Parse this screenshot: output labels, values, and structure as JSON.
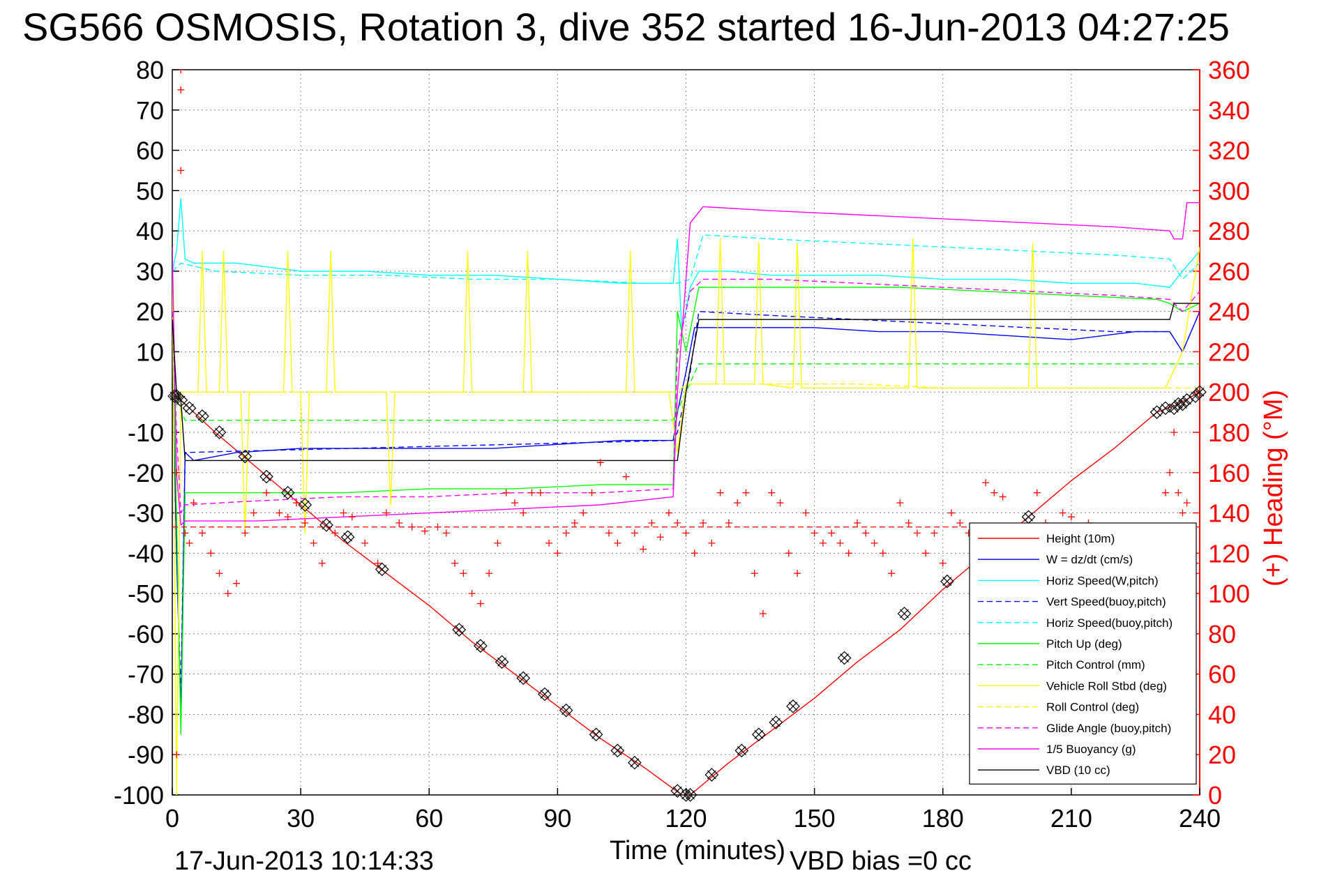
{
  "chart_data": {
    "type": "line",
    "title": "SG566 OSMOSIS, Rotation 3, dive 352 started 16-Jun-2013 04:27:25",
    "xlabel": "Time (minutes)",
    "ylabel_right": "(+) Heading (°M)",
    "footer_left": "17-Jun-2013 10:14:33",
    "footer_right": "VBD bias =0 cc",
    "xlim": [
      0,
      240
    ],
    "ylim": [
      -100,
      80
    ],
    "ylim_right": [
      0,
      360
    ],
    "xticks": [
      0,
      30,
      60,
      90,
      120,
      150,
      180,
      210,
      240
    ],
    "yticks": [
      -100,
      -90,
      -80,
      -70,
      -60,
      -50,
      -40,
      -30,
      -20,
      -10,
      0,
      10,
      20,
      30,
      40,
      50,
      60,
      70,
      80
    ],
    "yticks_right": [
      0,
      20,
      40,
      60,
      80,
      100,
      120,
      140,
      160,
      180,
      200,
      220,
      240,
      260,
      280,
      300,
      320,
      340,
      360
    ],
    "grid": true,
    "legend_position": "bottom-right",
    "series": [
      {
        "name": "Height (10m)",
        "color": "#ff0000",
        "style": "solid",
        "x": [
          0,
          2,
          10,
          20,
          30,
          40,
          50,
          60,
          70,
          80,
          90,
          100,
          110,
          119,
          121,
          130,
          140,
          150,
          160,
          170,
          180,
          190,
          200,
          210,
          220,
          230,
          235,
          240
        ],
        "y": [
          -1,
          -2,
          -10,
          -19,
          -28,
          -37,
          -45,
          -53,
          -62,
          -70,
          -78,
          -86,
          -93,
          -100,
          -100,
          -92,
          -84,
          -76,
          -67,
          -59,
          -49,
          -40,
          -31,
          -22,
          -14,
          -5,
          -3,
          0
        ]
      },
      {
        "name": "W = dz/dt (cm/s)",
        "color": "#0000ff",
        "style": "solid",
        "x": [
          0,
          1,
          2,
          3,
          5,
          15,
          30,
          45,
          60,
          75,
          90,
          105,
          117,
          118,
          120,
          122,
          130,
          140,
          150,
          165,
          180,
          195,
          210,
          225,
          233,
          236,
          240
        ],
        "y": [
          10,
          -40,
          -80,
          -15,
          -17,
          -15,
          -14,
          -14,
          -14,
          -14,
          -13,
          -12,
          -12,
          -5,
          5,
          16,
          16,
          16,
          16,
          15,
          15,
          14,
          13,
          15,
          15,
          10,
          20
        ]
      },
      {
        "name": "Horiz Speed(W,pitch)",
        "color": "#00ffff",
        "style": "solid",
        "x": [
          0,
          1,
          2,
          3,
          5,
          15,
          30,
          45,
          60,
          75,
          90,
          105,
          117,
          118,
          119,
          121,
          123,
          130,
          140,
          150,
          165,
          180,
          195,
          210,
          225,
          233,
          236,
          240
        ],
        "y": [
          30,
          35,
          48,
          33,
          32,
          32,
          30,
          30,
          29,
          29,
          28,
          27,
          27,
          38,
          15,
          26,
          30,
          30,
          29,
          29,
          29,
          28,
          28,
          27,
          27,
          26,
          30,
          35
        ]
      },
      {
        "name": "Vert Speed(buoy,pitch)",
        "color": "#0000ff",
        "style": "dashed",
        "x": [
          0,
          1,
          2,
          3,
          117,
          118,
          121,
          123,
          140,
          160,
          180,
          200,
          220,
          233,
          236,
          240
        ],
        "y": [
          10,
          -40,
          -75,
          -15,
          -12,
          -10,
          5,
          20,
          19,
          18,
          17,
          16,
          15,
          15,
          10,
          20
        ]
      },
      {
        "name": "Horiz Speed(buoy,pitch)",
        "color": "#00ffff",
        "style": "dashed",
        "x": [
          0,
          2,
          10,
          30,
          50,
          70,
          90,
          110,
          118,
          121,
          124,
          140,
          160,
          180,
          200,
          220,
          233,
          236,
          240
        ],
        "y": [
          30,
          32,
          30,
          29,
          29,
          28,
          28,
          27,
          27,
          28,
          39,
          38,
          37,
          36,
          35,
          34,
          33,
          28,
          32
        ]
      },
      {
        "name": "Pitch Up (deg)",
        "color": "#00ff00",
        "style": "solid",
        "x": [
          0,
          1,
          2,
          3,
          20,
          40,
          60,
          80,
          100,
          117,
          118,
          120,
          123,
          130,
          150,
          170,
          190,
          210,
          230,
          233,
          236,
          240
        ],
        "y": [
          20,
          -30,
          -85,
          -25,
          -25,
          -25,
          -24,
          -24,
          -23,
          -23,
          20,
          10,
          26,
          26,
          26,
          26,
          25,
          24,
          23,
          22,
          20,
          22
        ]
      },
      {
        "name": "Pitch Control (mm)",
        "color": "#00ff00",
        "style": "dashed",
        "x": [
          0,
          1,
          3,
          117,
          120,
          123,
          240
        ],
        "y": [
          0,
          -2,
          -7,
          -7,
          0,
          7,
          7
        ]
      },
      {
        "name": "Vehicle Roll Stbd (deg)",
        "color": "#ffff00",
        "style": "solid",
        "x": [
          0,
          1,
          2,
          6,
          7,
          8,
          11,
          12,
          13,
          16,
          17,
          18,
          20,
          26,
          27,
          28,
          30,
          31,
          32,
          36,
          37,
          38,
          45,
          50,
          51,
          52,
          60,
          68,
          69,
          70,
          76,
          82,
          83,
          84,
          90,
          100,
          106,
          107,
          108,
          116,
          118,
          120,
          127,
          128,
          129,
          136,
          137,
          138,
          145,
          146,
          147,
          160,
          170,
          172,
          173,
          174,
          190,
          200,
          201,
          202,
          220,
          232,
          236,
          240
        ],
        "y": [
          35,
          -100,
          0,
          0,
          35,
          0,
          0,
          35,
          0,
          0,
          -35,
          0,
          0,
          0,
          35,
          0,
          0,
          -35,
          0,
          0,
          35,
          0,
          0,
          0,
          -28,
          0,
          0,
          0,
          35,
          0,
          0,
          0,
          35,
          0,
          0,
          0,
          0,
          35,
          0,
          0,
          -15,
          2,
          2,
          38,
          2,
          2,
          37,
          2,
          1,
          37,
          1,
          1,
          1,
          1,
          38,
          1,
          1,
          1,
          37,
          1,
          1,
          1,
          10,
          36
        ]
      },
      {
        "name": "Roll Control (deg)",
        "color": "#ffff00",
        "style": "dashed",
        "x": [
          0,
          20,
          40,
          60,
          80,
          100,
          118,
          120,
          140,
          160,
          180,
          200,
          220,
          240
        ],
        "y": [
          0,
          0,
          0,
          0,
          0,
          0,
          0,
          2,
          2,
          2,
          1,
          1,
          1,
          1
        ]
      },
      {
        "name": "Glide Angle (buoy,pitch)",
        "color": "#ff00ff",
        "style": "dashed",
        "x": [
          0,
          1,
          2,
          3,
          20,
          40,
          60,
          80,
          100,
          117,
          118,
          121,
          124,
          140,
          160,
          180,
          200,
          220,
          233,
          236,
          240
        ],
        "y": [
          20,
          -10,
          -30,
          -28,
          -27,
          -26,
          -26,
          -25,
          -25,
          -24,
          10,
          25,
          28,
          28,
          27,
          26,
          25,
          24,
          23,
          20,
          25
        ]
      },
      {
        "name": "1/5 Buoyancy (g)",
        "color": "#ff00ff",
        "style": "solid",
        "x": [
          0,
          1,
          2,
          3,
          20,
          40,
          60,
          80,
          100,
          117,
          118,
          121,
          124,
          140,
          160,
          180,
          200,
          220,
          233,
          234,
          236,
          237,
          240
        ],
        "y": [
          36,
          -20,
          -33,
          -32,
          -32,
          -31,
          -30,
          -29,
          -28,
          -26,
          0,
          42,
          46,
          45,
          44,
          43,
          42,
          41,
          40,
          38,
          38,
          47,
          47
        ]
      },
      {
        "name": "VBD (10 cc)",
        "color": "#000000",
        "style": "solid",
        "x": [
          0,
          1,
          2,
          3,
          118,
          120,
          123,
          233,
          234,
          240
        ],
        "y": [
          18,
          0,
          -2,
          -17,
          -17,
          0,
          18,
          18,
          22,
          22
        ]
      }
    ],
    "heading": {
      "name": "(+) Heading (°M)",
      "color": "#ff0000",
      "marker": "+",
      "reference_heading": 133,
      "points": [
        [
          0,
          200
        ],
        [
          1,
          160
        ],
        [
          1,
          20
        ],
        [
          2,
          360
        ],
        [
          2,
          350
        ],
        [
          2,
          310
        ],
        [
          3,
          130
        ],
        [
          4,
          125
        ],
        [
          5,
          145
        ],
        [
          7,
          130
        ],
        [
          9,
          120
        ],
        [
          11,
          110
        ],
        [
          13,
          100
        ],
        [
          15,
          105
        ],
        [
          17,
          130
        ],
        [
          19,
          140
        ],
        [
          22,
          150
        ],
        [
          25,
          140
        ],
        [
          27,
          138
        ],
        [
          29,
          145
        ],
        [
          31,
          135
        ],
        [
          33,
          125
        ],
        [
          35,
          115
        ],
        [
          38,
          130
        ],
        [
          40,
          140
        ],
        [
          42,
          138
        ],
        [
          45,
          125
        ],
        [
          48,
          115
        ],
        [
          50,
          140
        ],
        [
          53,
          135
        ],
        [
          56,
          133
        ],
        [
          59,
          131
        ],
        [
          62,
          133
        ],
        [
          64,
          130
        ],
        [
          66,
          115
        ],
        [
          68,
          110
        ],
        [
          70,
          100
        ],
        [
          72,
          95
        ],
        [
          74,
          110
        ],
        [
          76,
          125
        ],
        [
          78,
          150
        ],
        [
          80,
          145
        ],
        [
          82,
          140
        ],
        [
          84,
          150
        ],
        [
          86,
          150
        ],
        [
          88,
          125
        ],
        [
          90,
          120
        ],
        [
          92,
          130
        ],
        [
          94,
          135
        ],
        [
          96,
          140
        ],
        [
          98,
          150
        ],
        [
          100,
          165
        ],
        [
          102,
          130
        ],
        [
          104,
          125
        ],
        [
          106,
          158
        ],
        [
          108,
          130
        ],
        [
          110,
          122
        ],
        [
          112,
          135
        ],
        [
          114,
          128
        ],
        [
          116,
          140
        ],
        [
          118,
          135
        ],
        [
          120,
          130
        ],
        [
          122,
          120
        ],
        [
          124,
          135
        ],
        [
          126,
          125
        ],
        [
          128,
          150
        ],
        [
          130,
          135
        ],
        [
          132,
          145
        ],
        [
          134,
          150
        ],
        [
          136,
          110
        ],
        [
          138,
          90
        ],
        [
          140,
          150
        ],
        [
          142,
          145
        ],
        [
          144,
          120
        ],
        [
          146,
          110
        ],
        [
          148,
          140
        ],
        [
          150,
          130
        ],
        [
          152,
          125
        ],
        [
          154,
          130
        ],
        [
          156,
          125
        ],
        [
          158,
          120
        ],
        [
          160,
          135
        ],
        [
          162,
          130
        ],
        [
          164,
          125
        ],
        [
          166,
          120
        ],
        [
          168,
          110
        ],
        [
          170,
          145
        ],
        [
          172,
          135
        ],
        [
          174,
          130
        ],
        [
          176,
          120
        ],
        [
          178,
          130
        ],
        [
          180,
          115
        ],
        [
          182,
          140
        ],
        [
          184,
          135
        ],
        [
          186,
          130
        ],
        [
          188,
          125
        ],
        [
          190,
          155
        ],
        [
          192,
          150
        ],
        [
          194,
          148
        ],
        [
          196,
          130
        ],
        [
          198,
          120
        ],
        [
          200,
          125
        ],
        [
          202,
          150
        ],
        [
          204,
          135
        ],
        [
          206,
          130
        ],
        [
          208,
          140
        ],
        [
          210,
          138
        ],
        [
          212,
          132
        ],
        [
          214,
          135
        ],
        [
          216,
          130
        ],
        [
          218,
          125
        ],
        [
          220,
          130
        ],
        [
          224,
          128
        ],
        [
          228,
          120
        ],
        [
          232,
          150
        ],
        [
          233,
          160
        ],
        [
          234,
          180
        ],
        [
          235,
          150
        ],
        [
          236,
          140
        ],
        [
          237,
          145
        ],
        [
          238,
          125
        ],
        [
          239,
          115
        ],
        [
          240,
          110
        ]
      ]
    },
    "vbd_markers": {
      "marker": "diamond-x",
      "x": [
        0.5,
        1,
        2,
        4,
        7,
        11,
        17,
        22,
        27,
        31,
        36,
        41,
        49,
        67,
        72,
        77,
        82,
        87,
        92,
        99,
        104,
        108,
        118,
        120,
        121,
        126,
        133,
        137,
        141,
        145,
        157,
        171,
        181,
        196,
        200,
        230,
        232,
        234,
        235,
        236,
        237,
        239,
        240
      ],
      "y": [
        -1,
        -1,
        -2,
        -4,
        -6,
        -10,
        -16,
        -21,
        -25,
        -28,
        -33,
        -36,
        -44,
        -59,
        -63,
        -67,
        -71,
        -75,
        -79,
        -85,
        -89,
        -92,
        -99,
        -100,
        -100,
        -95,
        -89,
        -85,
        -82,
        -78,
        -66,
        -55,
        -47,
        -35,
        -31,
        -5,
        -4,
        -4,
        -3,
        -3,
        -2,
        -1,
        0
      ]
    }
  }
}
